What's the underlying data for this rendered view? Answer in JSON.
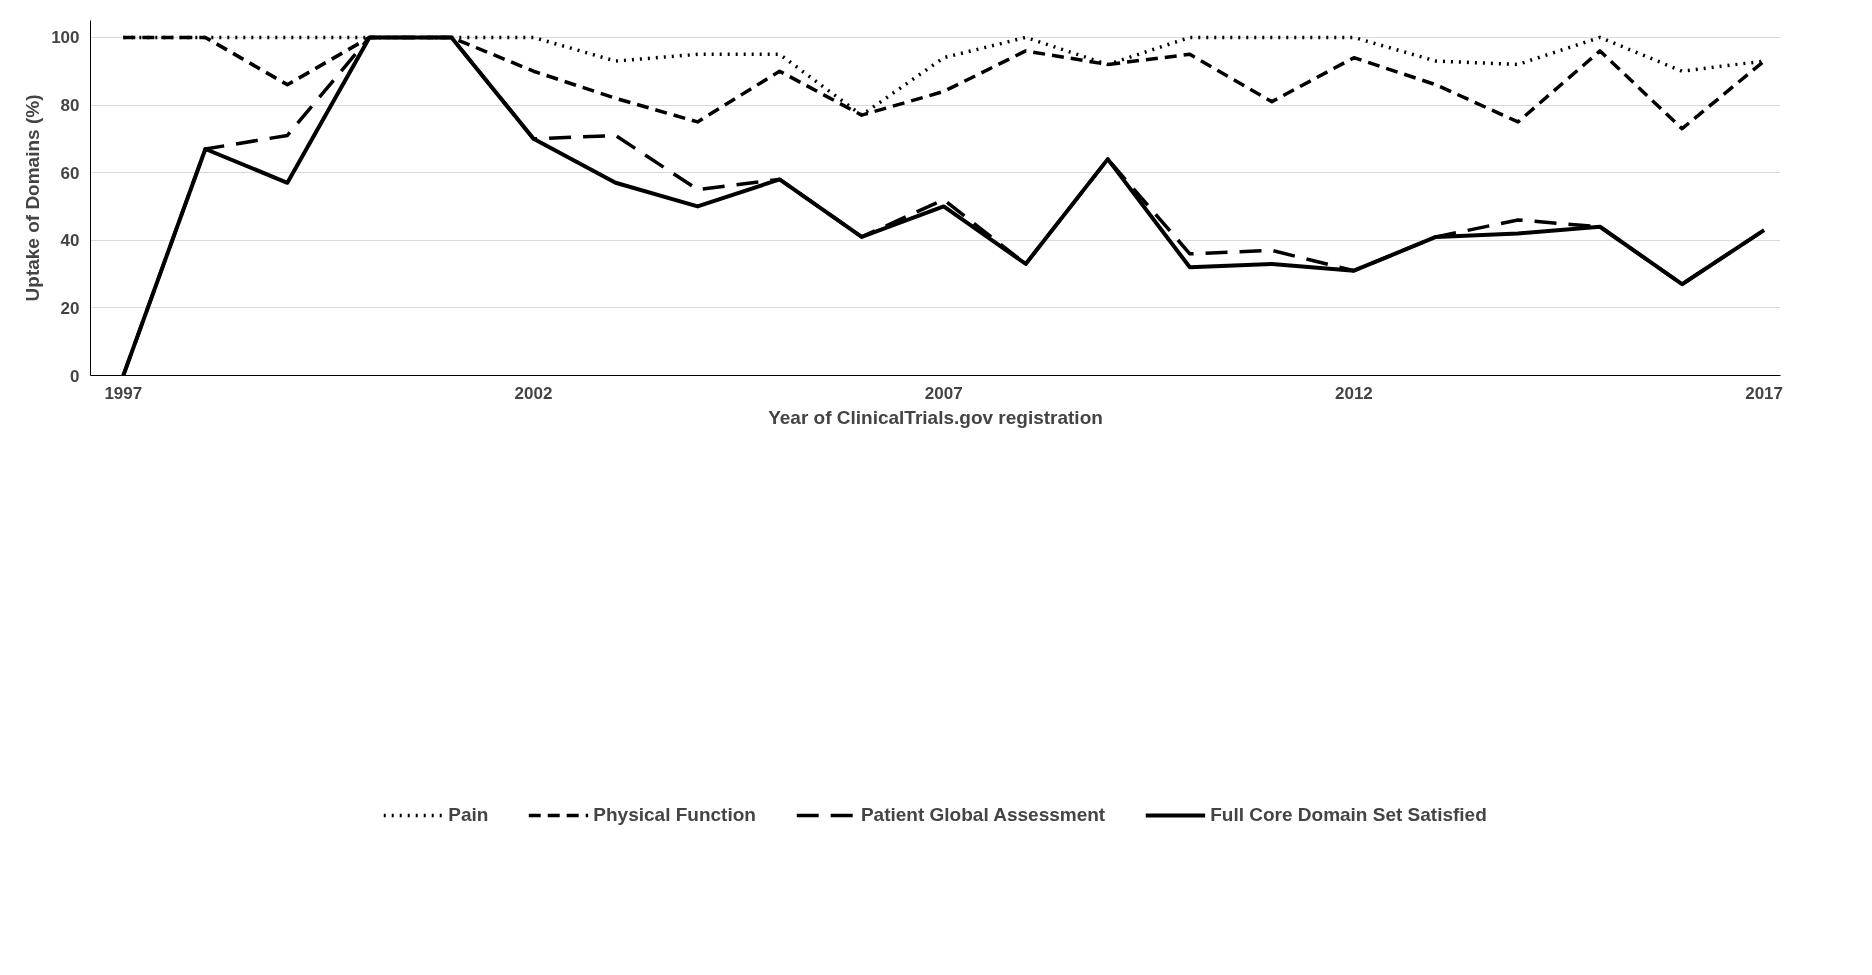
{
  "chart_data": {
    "type": "line",
    "xlabel": "Year of ClinicalTrials.gov registration",
    "ylabel": "Uptake of Domains (%)",
    "x": [
      1997,
      1998,
      1999,
      2000,
      2001,
      2002,
      2003,
      2004,
      2005,
      2006,
      2007,
      2008,
      2009,
      2010,
      2011,
      2012,
      2013,
      2014,
      2015,
      2016,
      2017
    ],
    "series": [
      {
        "name": "Pain",
        "color": "#000000",
        "line_style": "dotted",
        "values": [
          100,
          100,
          100,
          100,
          100,
          100,
          93,
          95,
          95,
          77,
          94,
          100,
          92,
          100,
          100,
          100,
          93,
          92,
          100,
          90,
          93
        ]
      },
      {
        "name": "Physical Function",
        "color": "#000000",
        "line_style": "dashed",
        "values": [
          100,
          100,
          86,
          100,
          100,
          90,
          82,
          75,
          90,
          77,
          84,
          96,
          92,
          95,
          81,
          94,
          86,
          75,
          96,
          73,
          93
        ]
      },
      {
        "name": "Patient Global Assessment",
        "color": "#000000",
        "line_style": "longdash",
        "values": [
          0,
          67,
          71,
          100,
          100,
          70,
          71,
          55,
          58,
          41,
          52,
          33,
          64,
          36,
          37,
          31,
          41,
          46,
          44,
          27,
          43
        ]
      },
      {
        "name": "Full Core Domain Set Satisfied",
        "color": "#000000",
        "line_style": "solid",
        "values": [
          0,
          67,
          57,
          100,
          100,
          70,
          57,
          50,
          58,
          41,
          50,
          33,
          64,
          32,
          33,
          31,
          41,
          42,
          44,
          27,
          43
        ]
      }
    ],
    "xlim": [
      1996.6,
      2017.2
    ],
    "xticks": [
      1997,
      2002,
      2007,
      2012,
      2017
    ],
    "ylim": [
      0,
      105
    ],
    "yticks": [
      0,
      20,
      40,
      60,
      80,
      100
    ],
    "grid": "y",
    "legend": "bottom"
  }
}
